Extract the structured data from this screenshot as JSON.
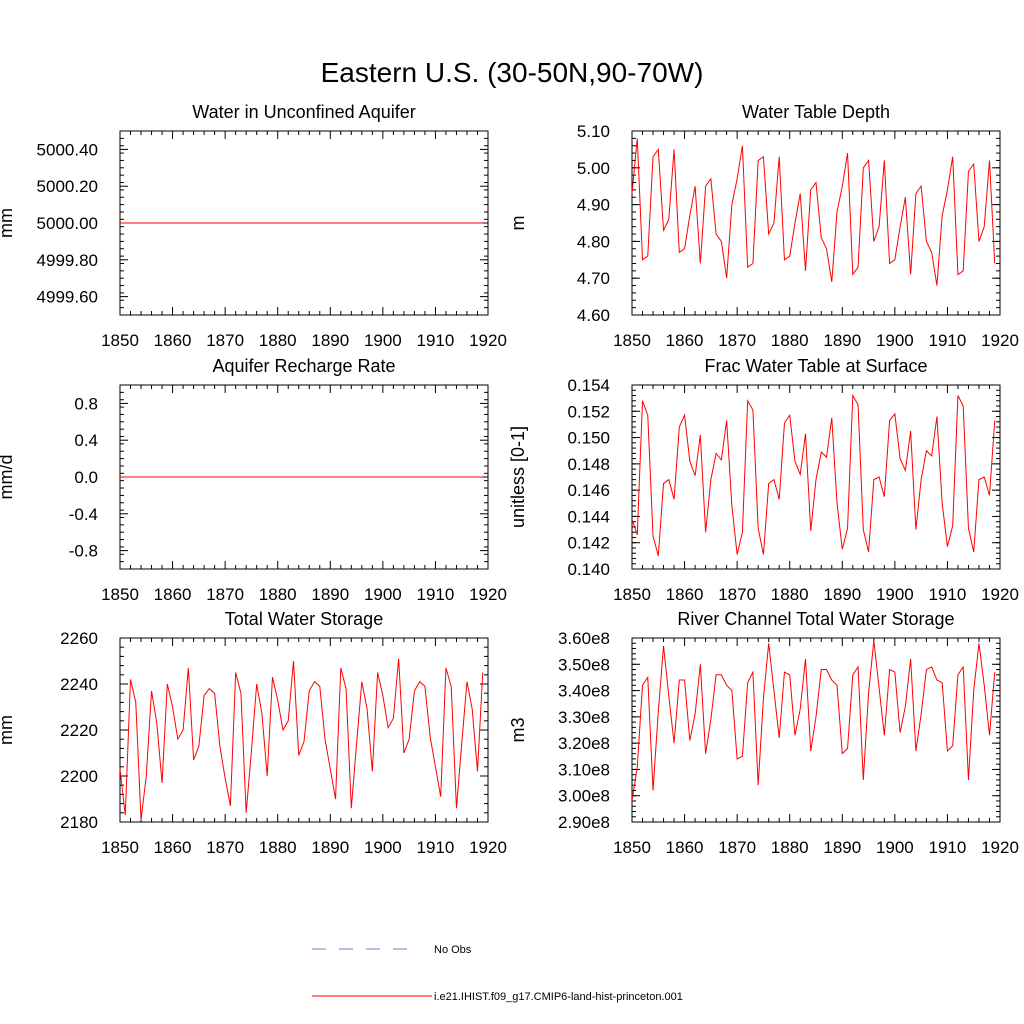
{
  "figure_title": "Eastern U.S. (30-50N,90-70W)",
  "colors": {
    "model": "#ff0000",
    "obs": "#6b7fd7",
    "axis": "#000000"
  },
  "legend": {
    "obs_label": "No Obs",
    "model_label": "i.e21.IHIST.f09_g17.CMIP6-land-hist-princeton.001"
  },
  "chart_data": [
    {
      "type": "line",
      "title": "Water in Unconfined Aquifer",
      "ylabel": "mm",
      "xlim": [
        1850,
        1920
      ],
      "xticks": [
        1850,
        1860,
        1870,
        1880,
        1890,
        1900,
        1910,
        1920
      ],
      "xticklabels": [
        "1850",
        "1860",
        "1870",
        "1880",
        "1890",
        "1900",
        "1910",
        "1920"
      ],
      "ylim": [
        4999.5,
        5000.5
      ],
      "yticks": [
        4999.6,
        4999.8,
        5000.0,
        5000.2,
        5000.4
      ],
      "yticklabels": [
        "4999.60",
        "4999.80",
        "5000.00",
        "5000.20",
        "5000.40"
      ],
      "series": [
        {
          "x_start": 1850,
          "x_step": 1,
          "values": [
            5000,
            5000,
            5000,
            5000,
            5000,
            5000,
            5000,
            5000,
            5000,
            5000,
            5000,
            5000,
            5000,
            5000,
            5000,
            5000,
            5000,
            5000,
            5000,
            5000,
            5000,
            5000,
            5000,
            5000,
            5000,
            5000,
            5000,
            5000,
            5000,
            5000,
            5000,
            5000,
            5000,
            5000,
            5000,
            5000,
            5000,
            5000,
            5000,
            5000,
            5000,
            5000,
            5000,
            5000,
            5000,
            5000,
            5000,
            5000,
            5000,
            5000,
            5000,
            5000,
            5000,
            5000,
            5000,
            5000,
            5000,
            5000,
            5000,
            5000,
            5000,
            5000,
            5000,
            5000,
            5000,
            5000,
            5000,
            5000,
            5000,
            5000
          ]
        }
      ]
    },
    {
      "type": "line",
      "title": "Water Table Depth",
      "ylabel": "m",
      "xlim": [
        1850,
        1920
      ],
      "xticks": [
        1850,
        1860,
        1870,
        1880,
        1890,
        1900,
        1910,
        1920
      ],
      "xticklabels": [
        "1850",
        "1860",
        "1870",
        "1880",
        "1890",
        "1900",
        "1910",
        "1920"
      ],
      "ylim": [
        4.6,
        5.1
      ],
      "yticks": [
        4.6,
        4.7,
        4.8,
        4.9,
        5.0,
        5.1
      ],
      "yticklabels": [
        "4.60",
        "4.70",
        "4.80",
        "4.90",
        "5.00",
        "5.10"
      ],
      "series": [
        {
          "x_start": 1850,
          "x_step": 1,
          "values": [
            4.93,
            5.08,
            4.75,
            4.76,
            5.03,
            5.05,
            4.83,
            4.86,
            5.05,
            4.77,
            4.78,
            4.87,
            4.95,
            4.74,
            4.95,
            4.97,
            4.82,
            4.8,
            4.7,
            4.9,
            4.97,
            5.06,
            4.73,
            4.74,
            5.02,
            5.03,
            4.82,
            4.85,
            5.03,
            4.75,
            4.76,
            4.85,
            4.93,
            4.72,
            4.94,
            4.96,
            4.81,
            4.78,
            4.69,
            4.88,
            4.95,
            5.04,
            4.71,
            4.73,
            5.0,
            5.02,
            4.8,
            4.84,
            5.02,
            4.74,
            4.75,
            4.84,
            4.92,
            4.71,
            4.93,
            4.95,
            4.8,
            4.77,
            4.68,
            4.87,
            4.94,
            5.03,
            4.71,
            4.72,
            4.99,
            5.01,
            4.8,
            4.84,
            5.02,
            4.74
          ]
        }
      ]
    },
    {
      "type": "line",
      "title": "Aquifer Recharge Rate",
      "ylabel": "mm/d",
      "xlim": [
        1850,
        1920
      ],
      "xticks": [
        1850,
        1860,
        1870,
        1880,
        1890,
        1900,
        1910,
        1920
      ],
      "xticklabels": [
        "1850",
        "1860",
        "1870",
        "1880",
        "1890",
        "1900",
        "1910",
        "1920"
      ],
      "ylim": [
        -1.0,
        1.0
      ],
      "yticks": [
        -0.8,
        -0.4,
        0.0,
        0.4,
        0.8
      ],
      "yticklabels": [
        "-0.8",
        "-0.4",
        "0.0",
        "0.4",
        "0.8"
      ],
      "series": [
        {
          "x_start": 1850,
          "x_step": 1,
          "values": [
            0,
            0,
            0,
            0,
            0,
            0,
            0,
            0,
            0,
            0,
            0,
            0,
            0,
            0,
            0,
            0,
            0,
            0,
            0,
            0,
            0,
            0,
            0,
            0,
            0,
            0,
            0,
            0,
            0,
            0,
            0,
            0,
            0,
            0,
            0,
            0,
            0,
            0,
            0,
            0,
            0,
            0,
            0,
            0,
            0,
            0,
            0,
            0,
            0,
            0,
            0,
            0,
            0,
            0,
            0,
            0,
            0,
            0,
            0,
            0,
            0,
            0,
            0,
            0,
            0,
            0,
            0,
            0,
            0,
            0
          ]
        }
      ]
    },
    {
      "type": "line",
      "title": "Frac Water Table at Surface",
      "ylabel": "unitless [0-1]",
      "xlim": [
        1850,
        1920
      ],
      "xticks": [
        1850,
        1860,
        1870,
        1880,
        1890,
        1900,
        1910,
        1920
      ],
      "xticklabels": [
        "1850",
        "1860",
        "1870",
        "1880",
        "1890",
        "1900",
        "1910",
        "1920"
      ],
      "ylim": [
        0.14,
        0.154
      ],
      "yticks": [
        0.14,
        0.142,
        0.144,
        0.146,
        0.148,
        0.15,
        0.152,
        0.154
      ],
      "yticklabels": [
        "0.140",
        "0.142",
        "0.144",
        "0.146",
        "0.148",
        "0.150",
        "0.152",
        "0.154"
      ],
      "series": [
        {
          "x_start": 1850,
          "x_step": 1,
          "values": [
            0.1438,
            0.1426,
            0.1528,
            0.1517,
            0.1425,
            0.141,
            0.1465,
            0.1468,
            0.1453,
            0.1508,
            0.1517,
            0.1482,
            0.1471,
            0.1502,
            0.1428,
            0.1468,
            0.1488,
            0.1483,
            0.1513,
            0.1448,
            0.1411,
            0.1428,
            0.1528,
            0.1521,
            0.1431,
            0.1411,
            0.1465,
            0.1468,
            0.1453,
            0.1511,
            0.1517,
            0.1482,
            0.1472,
            0.1503,
            0.1429,
            0.1468,
            0.1489,
            0.1485,
            0.1515,
            0.145,
            0.1415,
            0.1431,
            0.1532,
            0.1525,
            0.143,
            0.1413,
            0.1468,
            0.147,
            0.1455,
            0.1513,
            0.1518,
            0.1484,
            0.1475,
            0.1505,
            0.143,
            0.1468,
            0.149,
            0.1486,
            0.1516,
            0.145,
            0.1417,
            0.1433,
            0.1532,
            0.1524,
            0.1431,
            0.1413,
            0.1468,
            0.147,
            0.1456,
            0.1513
          ]
        }
      ]
    },
    {
      "type": "line",
      "title": "Total Water Storage",
      "ylabel": "mm",
      "xlim": [
        1850,
        1920
      ],
      "xticks": [
        1850,
        1860,
        1870,
        1880,
        1890,
        1900,
        1910,
        1920
      ],
      "xticklabels": [
        "1850",
        "1860",
        "1870",
        "1880",
        "1890",
        "1900",
        "1910",
        "1920"
      ],
      "ylim": [
        2180,
        2260
      ],
      "yticks": [
        2180,
        2200,
        2220,
        2240,
        2260
      ],
      "yticklabels": [
        "2180",
        "2200",
        "2220",
        "2240",
        "2260"
      ],
      "series": [
        {
          "x_start": 1850,
          "x_step": 1,
          "values": [
            2203,
            2183,
            2242,
            2232,
            2181,
            2200,
            2237,
            2223,
            2197,
            2240,
            2230,
            2216,
            2220,
            2247,
            2207,
            2213,
            2235,
            2238,
            2236,
            2213,
            2199,
            2187,
            2245,
            2236,
            2184,
            2211,
            2240,
            2227,
            2200,
            2243,
            2233,
            2220,
            2224,
            2250,
            2209,
            2215,
            2237,
            2241,
            2239,
            2216,
            2203,
            2190,
            2247,
            2238,
            2186,
            2214,
            2241,
            2229,
            2202,
            2245,
            2235,
            2221,
            2225,
            2251,
            2210,
            2216,
            2237,
            2241,
            2239,
            2217,
            2204,
            2191,
            2247,
            2239,
            2186,
            2214,
            2241,
            2229,
            2202,
            2245
          ]
        }
      ]
    },
    {
      "type": "line",
      "title": "River Channel Total Water Storage",
      "ylabel": "m3",
      "xlim": [
        1850,
        1920
      ],
      "xticks": [
        1850,
        1860,
        1870,
        1880,
        1890,
        1900,
        1910,
        1920
      ],
      "xticklabels": [
        "1850",
        "1860",
        "1870",
        "1880",
        "1890",
        "1900",
        "1910",
        "1920"
      ],
      "ylim": [
        290000000,
        360000000
      ],
      "yticks": [
        290000000,
        300000000,
        310000000,
        320000000,
        330000000,
        340000000,
        350000000,
        360000000
      ],
      "yticklabels": [
        "2.90e8",
        "3.00e8",
        "3.10e8",
        "3.20e8",
        "3.30e8",
        "3.40e8",
        "3.50e8",
        "3.60e8"
      ],
      "series": [
        {
          "x_start": 1850,
          "x_step": 1,
          "values": [
            298000000,
            311000000,
            342000000,
            345000000,
            302000000,
            332000000,
            357000000,
            338000000,
            320000000,
            344000000,
            344000000,
            321000000,
            331000000,
            350000000,
            316000000,
            329000000,
            346000000,
            346000000,
            342000000,
            340000000,
            314000000,
            315000000,
            343000000,
            347000000,
            304000000,
            337000000,
            358000000,
            340000000,
            322000000,
            347000000,
            346000000,
            323000000,
            333000000,
            352000000,
            317000000,
            330000000,
            348000000,
            348000000,
            344000000,
            342000000,
            316000000,
            318000000,
            346000000,
            349000000,
            306000000,
            339000000,
            359000000,
            341000000,
            323000000,
            348000000,
            347000000,
            324000000,
            334000000,
            352000000,
            317000000,
            331000000,
            348000000,
            349000000,
            344000000,
            343000000,
            317000000,
            319000000,
            346000000,
            349000000,
            306000000,
            340000000,
            358000000,
            342000000,
            323000000,
            347000000
          ]
        }
      ]
    }
  ]
}
